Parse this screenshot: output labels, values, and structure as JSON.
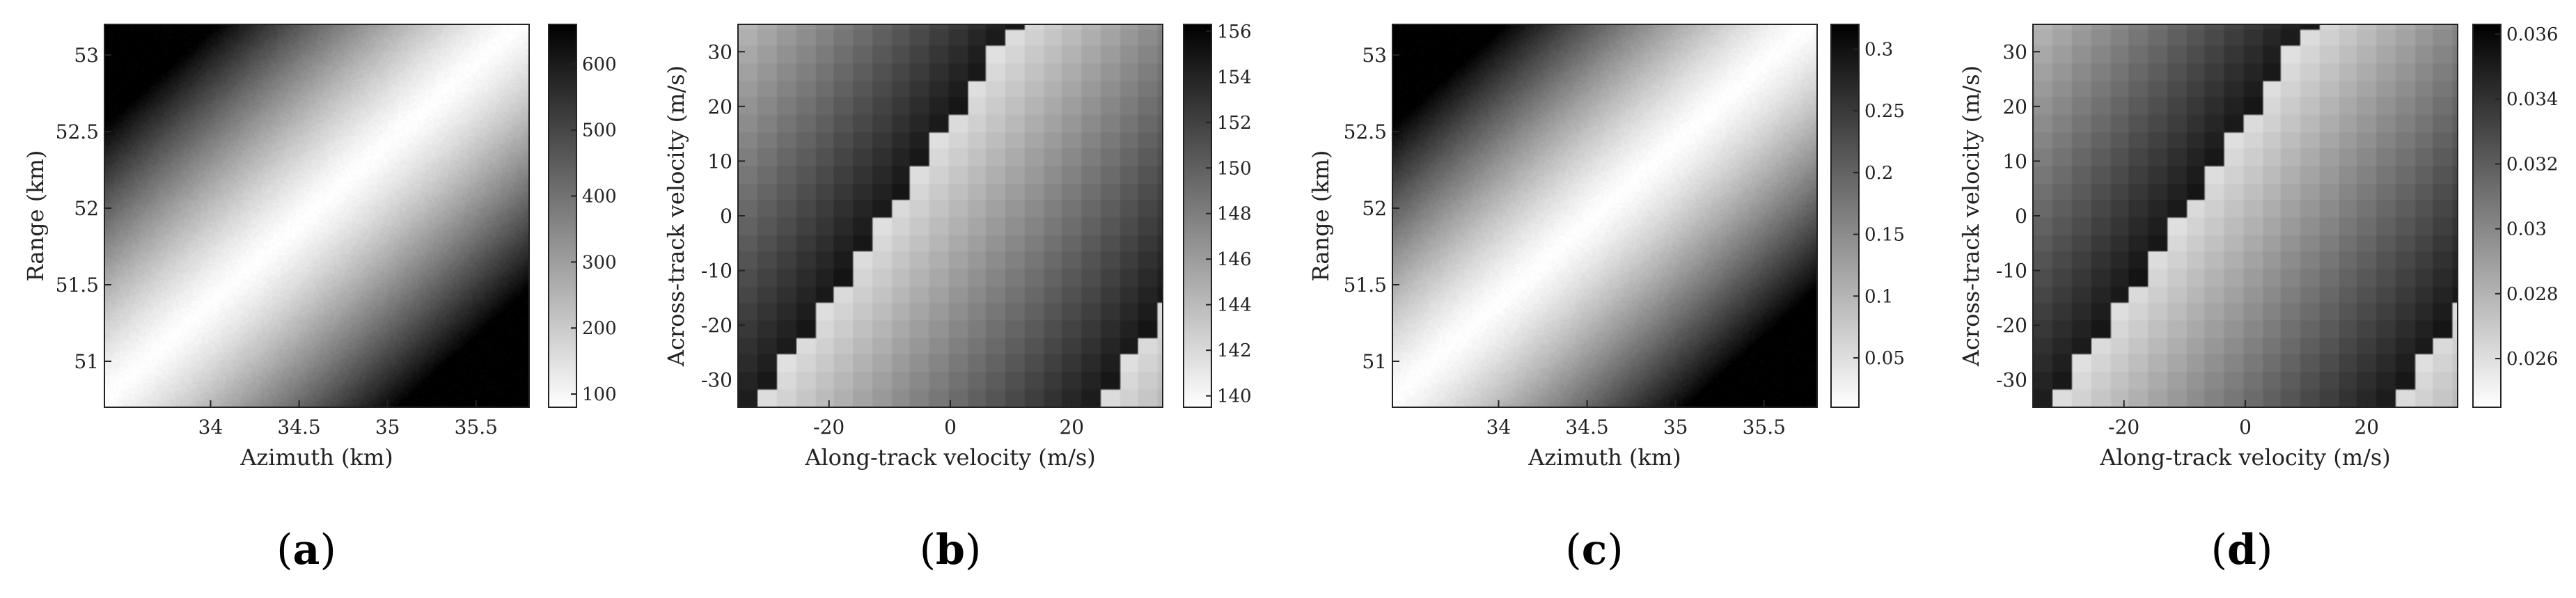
{
  "chart_data": [
    {
      "panel": "a",
      "type": "heatmap",
      "caption_open": "(",
      "caption_letter": "a",
      "caption_close": ")",
      "xlabel": "Azimuth (km)",
      "ylabel": "Range (km)",
      "xlim": [
        33.4,
        35.8
      ],
      "ylim": [
        50.7,
        53.2
      ],
      "xticks": [
        34,
        34.5,
        35,
        35.5
      ],
      "xtick_labels": [
        "34",
        "34.5",
        "35",
        "35.5"
      ],
      "yticks": [
        51,
        51.5,
        52,
        52.5,
        53
      ],
      "ytick_labels": [
        "51",
        "51.5",
        "52",
        "52.5",
        "53"
      ],
      "colorbar": {
        "min": 80,
        "max": 660,
        "ticks": [
          100,
          200,
          300,
          400,
          500,
          600
        ],
        "tick_labels": [
          "100",
          "200",
          "300",
          "400",
          "500",
          "600"
        ]
      },
      "colormap": "gray_reversed",
      "pattern": "distance_from_diagonal_valley"
    },
    {
      "panel": "b",
      "type": "heatmap",
      "caption_open": "(",
      "caption_letter": "b",
      "caption_close": ")",
      "xlabel": "Along-track velocity (m/s)",
      "ylabel": "Across-track velocity (m/s)",
      "xlim": [
        -35,
        35
      ],
      "ylim": [
        -35,
        35
      ],
      "xticks": [
        -20,
        0,
        20
      ],
      "xtick_labels": [
        "-20",
        "0",
        "20"
      ],
      "yticks": [
        -30,
        -20,
        -10,
        0,
        10,
        20,
        30
      ],
      "ytick_labels": [
        "-30",
        "-20",
        "-10",
        "0",
        "10",
        "20",
        "30"
      ],
      "colorbar": {
        "min": 139.5,
        "max": 156.3,
        "ticks": [
          140,
          142,
          144,
          146,
          148,
          150,
          152,
          154,
          156
        ],
        "tick_labels": [
          "140",
          "142",
          "144",
          "146",
          "148",
          "150",
          "152",
          "154",
          "156"
        ]
      },
      "colormap": "gray_reversed",
      "pattern": "banded_diagonal_steps"
    },
    {
      "panel": "c",
      "type": "heatmap",
      "caption_open": "(",
      "caption_letter": "c",
      "caption_close": ")",
      "xlabel": "Azimuth (km)",
      "ylabel": "Range (km)",
      "xlim": [
        33.4,
        35.8
      ],
      "ylim": [
        50.7,
        53.2
      ],
      "xticks": [
        34,
        34.5,
        35,
        35.5
      ],
      "xtick_labels": [
        "34",
        "34.5",
        "35",
        "35.5"
      ],
      "yticks": [
        51,
        51.5,
        52,
        52.5,
        53
      ],
      "ytick_labels": [
        "51",
        "51.5",
        "52",
        "52.5",
        "53"
      ],
      "colorbar": {
        "min": 0.01,
        "max": 0.32,
        "ticks": [
          0.05,
          0.1,
          0.15,
          0.2,
          0.25,
          0.3
        ],
        "tick_labels": [
          "0.05",
          "0.1",
          "0.15",
          "0.2",
          "0.25",
          "0.3"
        ]
      },
      "colormap": "gray_reversed",
      "pattern": "distance_from_diagonal_valley"
    },
    {
      "panel": "d",
      "type": "heatmap",
      "caption_open": "(",
      "caption_letter": "d",
      "caption_close": ")",
      "xlabel": "Along-track velocity (m/s)",
      "ylabel": "Across-track velocity (m/s)",
      "xlim": [
        -35,
        35
      ],
      "ylim": [
        -35,
        35
      ],
      "xticks": [
        -20,
        0,
        20
      ],
      "xtick_labels": [
        "-20",
        "0",
        "20"
      ],
      "yticks": [
        -30,
        -20,
        -10,
        0,
        10,
        20,
        30
      ],
      "ytick_labels": [
        "-30",
        "-20",
        "-10",
        "0",
        "10",
        "20",
        "30"
      ],
      "colorbar": {
        "min": 0.0245,
        "max": 0.0363,
        "ticks": [
          0.026,
          0.028,
          0.03,
          0.032,
          0.034,
          0.036
        ],
        "tick_labels": [
          "0.026",
          "0.028",
          "0.03",
          "0.032",
          "0.034",
          "0.036"
        ]
      },
      "colormap": "gray_reversed",
      "pattern": "banded_diagonal_steps"
    }
  ]
}
